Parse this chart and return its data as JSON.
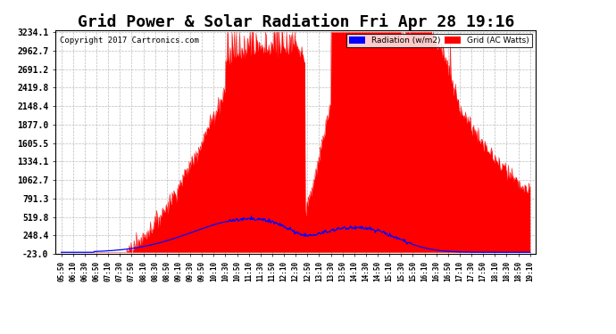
{
  "title": "Grid Power & Solar Radiation Fri Apr 28 19:16",
  "copyright": "Copyright 2017 Cartronics.com",
  "legend_radiation": "Radiation (w/m2)",
  "legend_grid": "Grid (AC Watts)",
  "yticks": [
    -23.0,
    248.4,
    519.8,
    791.3,
    1062.7,
    1334.1,
    1605.5,
    1877.0,
    2148.4,
    2419.8,
    2691.2,
    2962.7,
    3234.1
  ],
  "ymin": -23.0,
  "ymax": 3234.1,
  "bg_color": "#ffffff",
  "plot_bg_color": "#ffffff",
  "grid_color": "#bbbbbb",
  "red_fill_color": "#ff0000",
  "blue_line_color": "#0000ff",
  "title_fontsize": 13,
  "xtick_labels": [
    "05:50",
    "06:10",
    "06:30",
    "06:50",
    "07:10",
    "07:30",
    "07:50",
    "08:10",
    "08:30",
    "08:50",
    "09:10",
    "09:30",
    "09:50",
    "10:10",
    "10:30",
    "10:50",
    "11:10",
    "11:30",
    "11:50",
    "12:10",
    "12:30",
    "12:50",
    "13:10",
    "13:30",
    "13:50",
    "14:10",
    "14:30",
    "14:50",
    "15:10",
    "15:30",
    "15:50",
    "16:10",
    "16:30",
    "16:50",
    "17:10",
    "17:30",
    "17:50",
    "18:10",
    "18:30",
    "18:50",
    "19:10"
  ],
  "n_points": 800
}
